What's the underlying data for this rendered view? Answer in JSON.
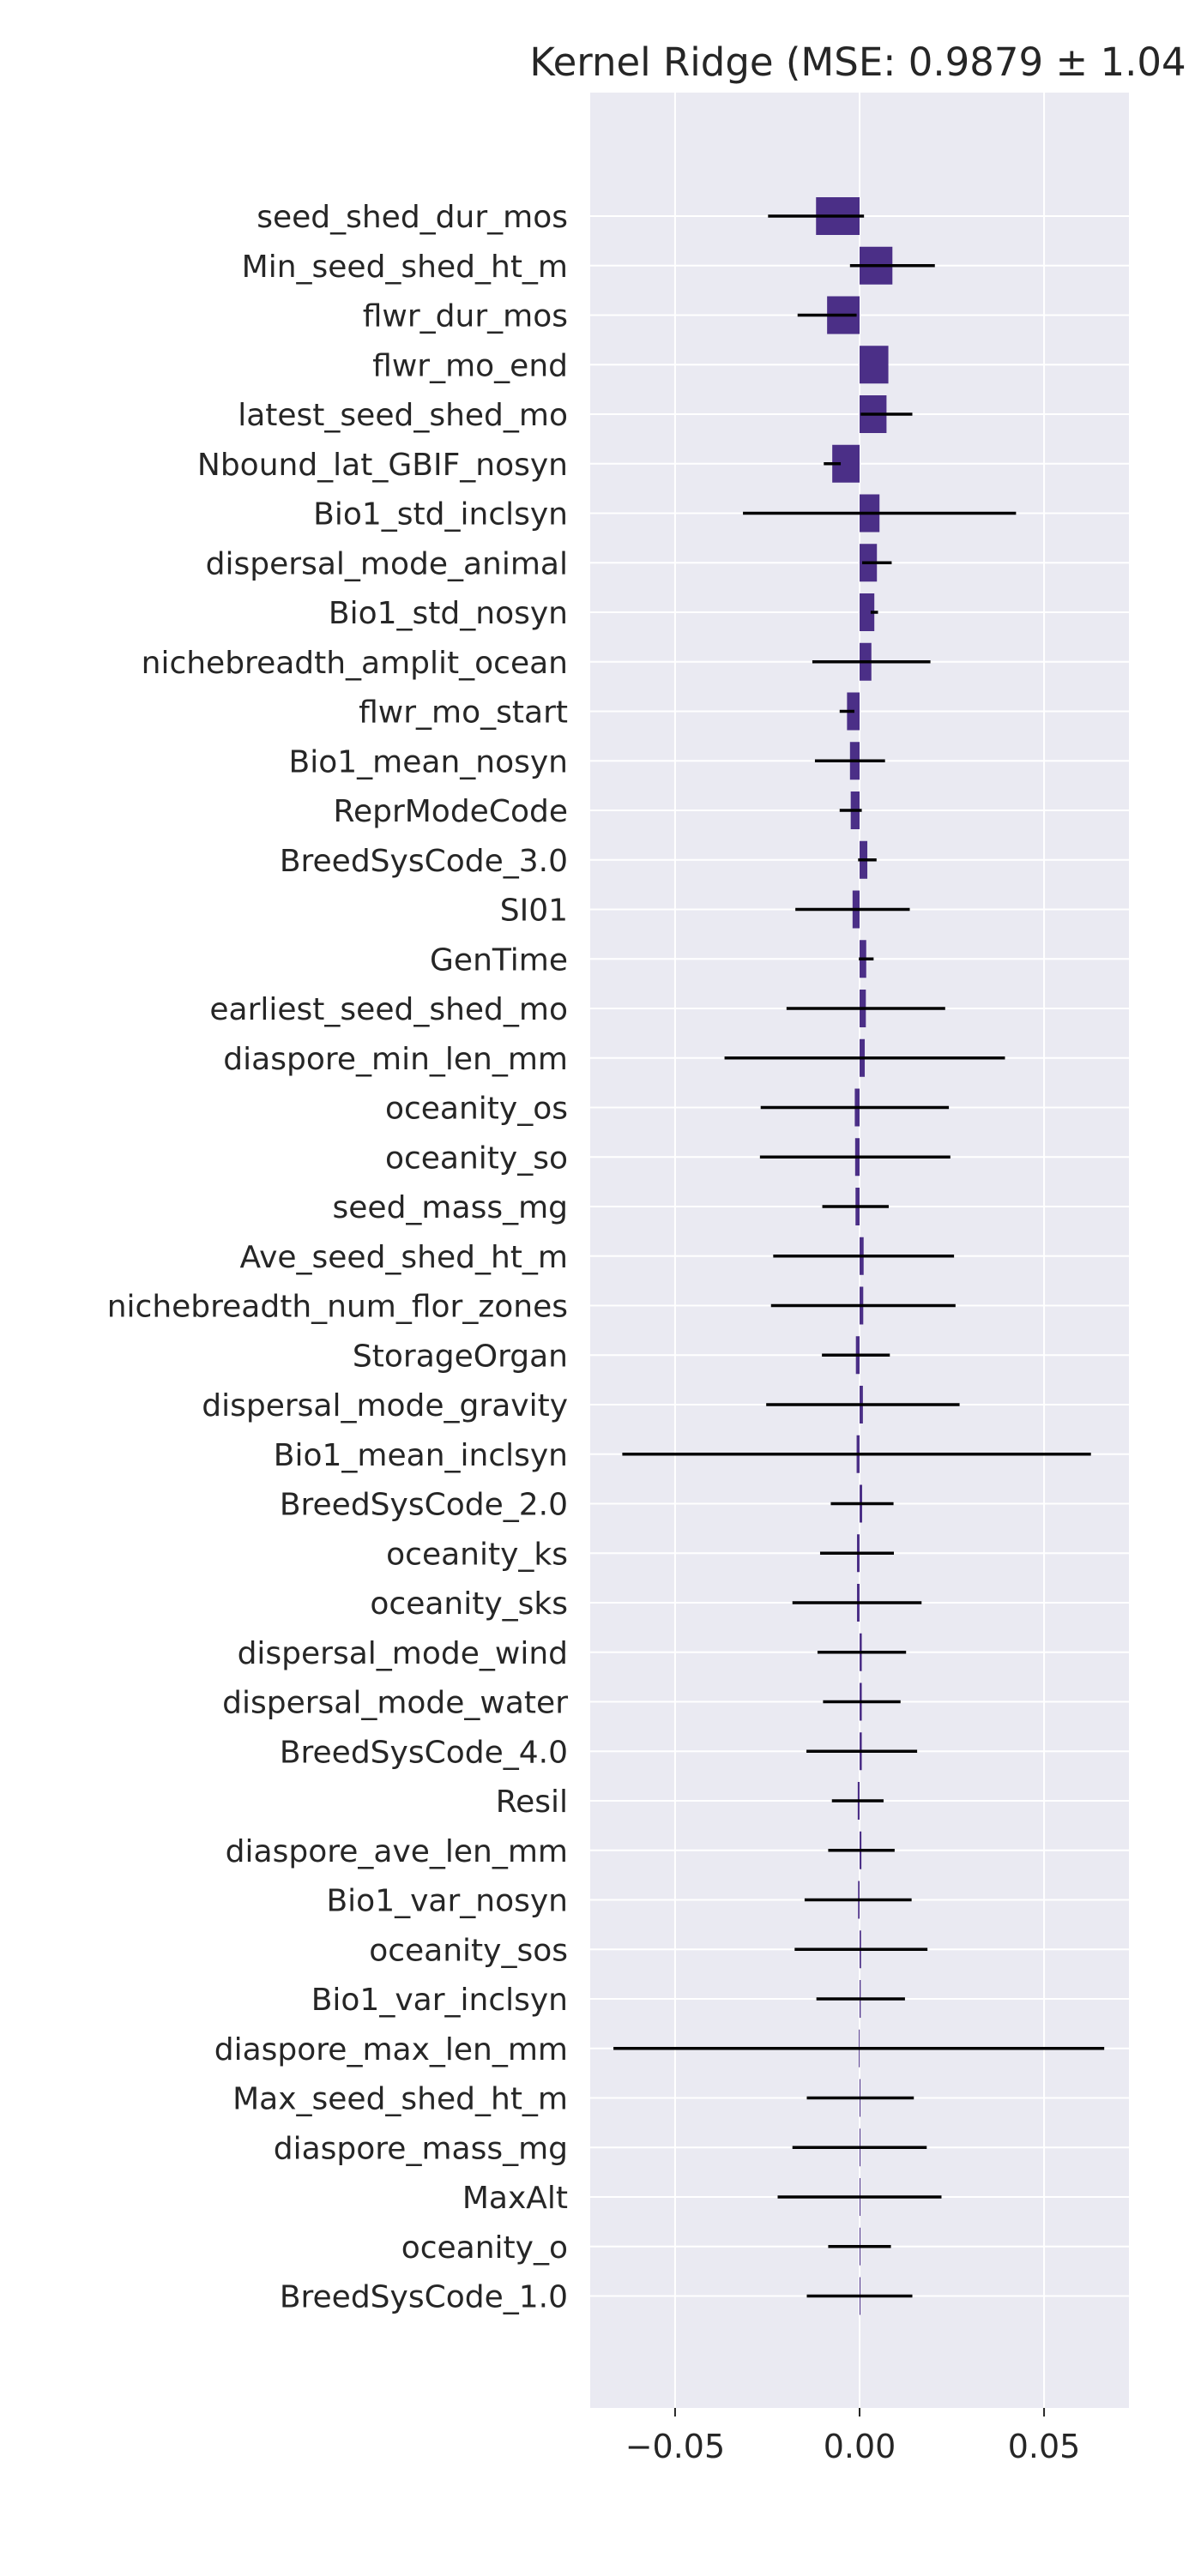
{
  "chart_data": {
    "type": "bar",
    "orientation": "horizontal",
    "title": "Kernel Ridge (MSE: 0.9879 ± 1.04",
    "xlabel": "",
    "ylabel": "",
    "xlim": [
      -0.073,
      0.073
    ],
    "xticks": [
      -0.05,
      0.0,
      0.05
    ],
    "xtick_labels": [
      "−0.05",
      "0.00",
      "0.05"
    ],
    "grid": true,
    "legend": "none",
    "colors": {
      "bar": "#4b2f87",
      "errorbar": "#000000",
      "background": "#eaeaf2",
      "grid": "#ffffff"
    },
    "categories": [
      "seed_shed_dur_mos",
      "Min_seed_shed_ht_m",
      "flwr_dur_mos",
      "flwr_mo_end",
      "latest_seed_shed_mo",
      "Nbound_lat_GBIF_nosyn",
      "Bio1_std_inclsyn",
      "dispersal_mode_animal",
      "Bio1_std_nosyn",
      "nichebreadth_amplit_ocean",
      "flwr_mo_start",
      "Bio1_mean_nosyn",
      "ReprModeCode",
      "BreedSysCode_3.0",
      "SI01",
      "GenTime",
      "earliest_seed_shed_mo",
      "diaspore_min_len_mm",
      "oceanity_os",
      "oceanity_so",
      "seed_mass_mg",
      "Ave_seed_shed_ht_m",
      "nichebreadth_num_flor_zones",
      "StorageOrgan",
      "dispersal_mode_gravity",
      "Bio1_mean_inclsyn",
      "BreedSysCode_2.0",
      "oceanity_ks",
      "oceanity_sks",
      "dispersal_mode_wind",
      "dispersal_mode_water",
      "BreedSysCode_4.0",
      "Resil",
      "diaspore_ave_len_mm",
      "Bio1_var_nosyn",
      "oceanity_sos",
      "Bio1_var_inclsyn",
      "diaspore_max_len_mm",
      "Max_seed_shed_ht_m",
      "diaspore_mass_mg",
      "MaxAlt",
      "oceanity_o",
      "BreedSysCode_1.0"
    ],
    "values": [
      -0.0118,
      0.0089,
      -0.0088,
      0.0078,
      0.0073,
      -0.0074,
      0.0054,
      0.0047,
      0.004,
      0.0032,
      -0.0034,
      -0.0026,
      -0.0024,
      0.0021,
      -0.0019,
      0.0018,
      0.0017,
      0.0014,
      -0.0013,
      -0.0012,
      -0.0011,
      0.0011,
      0.001,
      -0.001,
      0.0009,
      -0.0008,
      0.0007,
      -0.0007,
      -0.0007,
      0.0006,
      0.0006,
      0.0006,
      -0.0005,
      0.0005,
      -0.0004,
      0.0004,
      0.0003,
      -0.0002,
      0.0002,
      0.0,
      0.0,
      0.0,
      0.0
    ],
    "errors": [
      0.013,
      0.0115,
      0.008,
      0.0,
      0.007,
      0.0023,
      0.037,
      0.004,
      0.001,
      0.016,
      0.002,
      0.0095,
      0.003,
      0.0025,
      0.0155,
      0.002,
      0.0215,
      0.038,
      0.0255,
      0.0258,
      0.009,
      0.0245,
      0.025,
      0.0092,
      0.0262,
      0.0635,
      0.0085,
      0.01,
      0.0175,
      0.012,
      0.0105,
      0.015,
      0.007,
      0.009,
      0.0145,
      0.018,
      0.012,
      0.0665,
      0.0145,
      0.0182,
      0.0222,
      0.0085,
      0.0143
    ]
  }
}
